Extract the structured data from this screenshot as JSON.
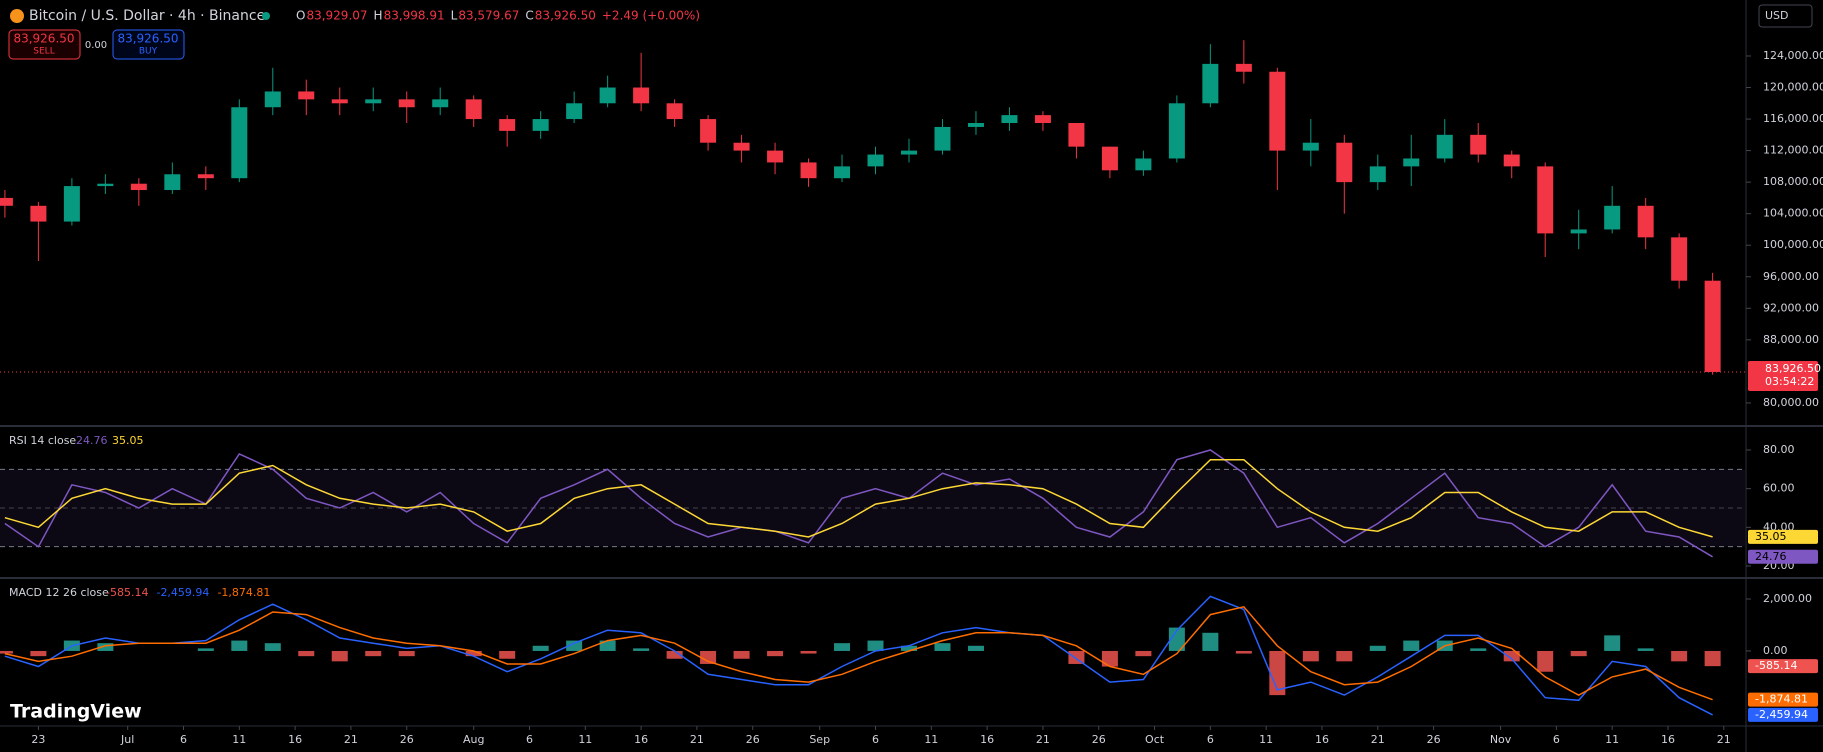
{
  "header": {
    "title": "Bitcoin / U.S. Dollar · 4h · Binance",
    "ohlc": [
      {
        "label": "O",
        "value": "83,929.07"
      },
      {
        "label": "H",
        "value": "83,998.91"
      },
      {
        "label": "L",
        "value": "83,579.67"
      },
      {
        "label": "C",
        "value": "83,926.50"
      }
    ],
    "change": "+2.49 (+0.00%)",
    "sell": {
      "price": "83,926.50",
      "label": "SELL"
    },
    "spread": "0.00",
    "buy": {
      "price": "83,926.50",
      "label": "BUY"
    },
    "currency": "USD",
    "countdown": "03:54:22",
    "logo": "TradingView"
  },
  "chart_data": [
    {
      "type": "candlestick",
      "up_color": "#089981",
      "down_color": "#f23645",
      "last_price_line": true,
      "grid": false,
      "x": [
        -3,
        0,
        3,
        6,
        9,
        12,
        15,
        18,
        21,
        24,
        27,
        30,
        33,
        36,
        39,
        42,
        45,
        48,
        51,
        54,
        57,
        60,
        63,
        66,
        69,
        72,
        75,
        78,
        81,
        84,
        87,
        90,
        93,
        96,
        99,
        102,
        105,
        108,
        111,
        114,
        117,
        120,
        123,
        126,
        129,
        132,
        135,
        138,
        141,
        144,
        147,
        150
      ],
      "open": [
        106000,
        105000,
        103000,
        107500,
        107800,
        107000,
        109000,
        108500,
        117500,
        119500,
        118500,
        118000,
        118500,
        117500,
        118500,
        116000,
        114500,
        116000,
        118000,
        120000,
        118000,
        116000,
        113000,
        112000,
        110500,
        108500,
        110000,
        111500,
        112000,
        115000,
        115500,
        116500,
        115500,
        112500,
        109500,
        111000,
        118000,
        123000,
        122000,
        112000,
        113000,
        108000,
        110000,
        111000,
        114000,
        111500,
        110000,
        101500,
        102000,
        105000,
        101000,
        95500
      ],
      "high": [
        107000,
        105500,
        108500,
        109000,
        108500,
        110500,
        110000,
        118500,
        122500,
        121000,
        120000,
        120000,
        119500,
        120000,
        119000,
        116500,
        117000,
        119500,
        121500,
        124400,
        118500,
        116500,
        114000,
        113000,
        111000,
        111500,
        112500,
        113500,
        116000,
        117000,
        117500,
        117000,
        115500,
        112500,
        112000,
        119000,
        125500,
        126000,
        122500,
        116000,
        114000,
        111500,
        114000,
        116000,
        115500,
        112000,
        110500,
        104500,
        107500,
        106000,
        101500,
        96500
      ],
      "low": [
        103500,
        98000,
        102500,
        106500,
        105000,
        106500,
        107000,
        108000,
        116500,
        116500,
        116500,
        117000,
        115500,
        116500,
        115000,
        112500,
        113500,
        115500,
        117500,
        117000,
        115000,
        112000,
        110500,
        109000,
        107400,
        108000,
        109000,
        110500,
        111500,
        114000,
        114500,
        114500,
        111000,
        108500,
        108800,
        110500,
        117500,
        120500,
        107000,
        110000,
        104000,
        107000,
        107500,
        110500,
        110500,
        108500,
        98500,
        99500,
        101500,
        99500,
        94500,
        83579.67
      ],
      "close": [
        105000,
        103000,
        107500,
        107800,
        107000,
        109000,
        108500,
        117500,
        119500,
        118500,
        118000,
        118500,
        117500,
        118500,
        116000,
        114500,
        116000,
        118000,
        120000,
        118000,
        116000,
        113000,
        112000,
        110500,
        108500,
        110000,
        111500,
        112000,
        115000,
        115500,
        116500,
        115500,
        112500,
        109500,
        111000,
        118000,
        123000,
        122000,
        112000,
        113000,
        108000,
        110000,
        111000,
        114000,
        111500,
        110000,
        101500,
        102000,
        105000,
        101000,
        95500,
        83926.5
      ],
      "xlim": [
        -3.44,
        152.9
      ],
      "xticks": [
        {
          "value": 0,
          "label": "23"
        },
        {
          "value": 8,
          "label": "Jul"
        },
        {
          "value": 13,
          "label": "6"
        },
        {
          "value": 18,
          "label": "11"
        },
        {
          "value": 23,
          "label": "16"
        },
        {
          "value": 28,
          "label": "21"
        },
        {
          "value": 33,
          "label": "26"
        },
        {
          "value": 39,
          "label": "Aug"
        },
        {
          "value": 44,
          "label": "6"
        },
        {
          "value": 49,
          "label": "11"
        },
        {
          "value": 54,
          "label": "16"
        },
        {
          "value": 59,
          "label": "21"
        },
        {
          "value": 64,
          "label": "26"
        },
        {
          "value": 70,
          "label": "Sep"
        },
        {
          "value": 75,
          "label": "6"
        },
        {
          "value": 80,
          "label": "11"
        },
        {
          "value": 85,
          "label": "16"
        },
        {
          "value": 90,
          "label": "21"
        },
        {
          "value": 95,
          "label": "26"
        },
        {
          "value": 100,
          "label": "Oct"
        },
        {
          "value": 105,
          "label": "6"
        },
        {
          "value": 110,
          "label": "11"
        },
        {
          "value": 115,
          "label": "16"
        },
        {
          "value": 120,
          "label": "21"
        },
        {
          "value": 125,
          "label": "26"
        },
        {
          "value": 131,
          "label": "Nov"
        },
        {
          "value": 136,
          "label": "6"
        },
        {
          "value": 141,
          "label": "11"
        },
        {
          "value": 146,
          "label": "16"
        },
        {
          "value": 151,
          "label": "21"
        }
      ],
      "ylim": [
        77200,
        131100
      ],
      "yticks": [
        {
          "value": 80000,
          "label": "80,000.00"
        },
        {
          "value": 88000,
          "label": "88,000.00"
        },
        {
          "value": 92000,
          "label": "92,000.00"
        },
        {
          "value": 96000,
          "label": "96,000.00"
        },
        {
          "value": 100000,
          "label": "100,000.00"
        },
        {
          "value": 104000,
          "label": "104,000.00"
        },
        {
          "value": 108000,
          "label": "108,000.00"
        },
        {
          "value": 112000,
          "label": "112,000.00"
        },
        {
          "value": 116000,
          "label": "116,000.00"
        },
        {
          "value": 120000,
          "label": "120,000.00"
        },
        {
          "value": 124000,
          "label": "124,000.00"
        }
      ]
    },
    {
      "type": "line",
      "title": "RSI 14 close",
      "band": [
        30,
        70
      ],
      "midline": 50,
      "band_color": "#7e57c2",
      "series": [
        {
          "color": "#7e57c2",
          "legend_value": "24.76",
          "values": [
            42,
            30,
            62,
            58,
            50,
            60,
            52,
            78,
            70,
            55,
            50,
            58,
            48,
            58,
            42,
            32,
            55,
            62,
            70,
            55,
            42,
            35,
            40,
            38,
            32,
            55,
            60,
            55,
            68,
            62,
            65,
            55,
            40,
            35,
            48,
            75,
            80,
            68,
            40,
            45,
            32,
            42,
            55,
            68,
            45,
            42,
            30,
            40,
            62,
            38,
            35,
            24.76
          ]
        },
        {
          "color": "#fdd835",
          "legend_value": "35.05",
          "values": [
            45,
            40,
            55,
            60,
            55,
            52,
            52,
            68,
            72,
            62,
            55,
            52,
            50,
            52,
            48,
            38,
            42,
            55,
            60,
            62,
            52,
            42,
            40,
            38,
            35,
            42,
            52,
            55,
            60,
            63,
            62,
            60,
            52,
            42,
            40,
            58,
            75,
            75,
            60,
            48,
            40,
            38,
            45,
            58,
            58,
            48,
            40,
            38,
            48,
            48,
            40,
            35.05
          ]
        }
      ],
      "ylim": [
        14.3,
        91.9
      ],
      "yticks": [
        {
          "value": 20,
          "label": "20.00"
        },
        {
          "value": 40,
          "label": "40.00"
        },
        {
          "value": 60,
          "label": "60.00"
        },
        {
          "value": 80,
          "label": "80.00"
        }
      ]
    },
    {
      "type": "macd",
      "title": "MACD 12 26 close",
      "histogram": {
        "pos_color": "#26a69a",
        "neg_color": "#ef5350",
        "legend_value": "-585.14",
        "values": [
          -100,
          -200,
          400,
          300,
          0,
          0,
          100,
          400,
          300,
          -200,
          -400,
          -200,
          -200,
          0,
          -200,
          -300,
          200,
          400,
          400,
          100,
          -300,
          -500,
          -300,
          -200,
          -100,
          300,
          400,
          200,
          300,
          200,
          0,
          0,
          -500,
          -600,
          -200,
          900,
          700,
          -100,
          -1700,
          -400,
          -400,
          200,
          400,
          400,
          100,
          -400,
          -800,
          -200,
          600,
          100,
          -400,
          -585.14
        ]
      },
      "series": [
        {
          "color": "#2962ff",
          "legend_value": "-2,459.94",
          "values": [
            -200,
            -600,
            200,
            500,
            300,
            300,
            400,
            1200,
            1800,
            1200,
            500,
            300,
            100,
            200,
            -200,
            -800,
            -300,
            300,
            800,
            700,
            0,
            -900,
            -1100,
            -1300,
            -1300,
            -600,
            0,
            200,
            700,
            900,
            700,
            600,
            -300,
            -1200,
            -1100,
            800,
            2100,
            1600,
            -1500,
            -1200,
            -1700,
            -1000,
            -200,
            600,
            600,
            -300,
            -1800,
            -1900,
            -400,
            -600,
            -1800,
            -2459.94
          ]
        },
        {
          "color": "#ff6d00",
          "legend_value": "-1,874.81",
          "values": [
            -100,
            -400,
            -200,
            200,
            300,
            300,
            300,
            800,
            1500,
            1400,
            900,
            500,
            300,
            200,
            0,
            -500,
            -500,
            -100,
            400,
            600,
            300,
            -400,
            -800,
            -1100,
            -1200,
            -900,
            -400,
            0,
            400,
            700,
            700,
            600,
            200,
            -600,
            -900,
            -100,
            1400,
            1700,
            200,
            -800,
            -1300,
            -1200,
            -600,
            200,
            500,
            100,
            -1000,
            -1700,
            -1000,
            -700,
            -1400,
            -1874.81
          ]
        }
      ],
      "ylim": [
        -2850,
        2770
      ],
      "yticks": [
        {
          "value": 0,
          "label": "0.00"
        },
        {
          "value": 2000,
          "label": "2,000.00"
        }
      ]
    }
  ]
}
